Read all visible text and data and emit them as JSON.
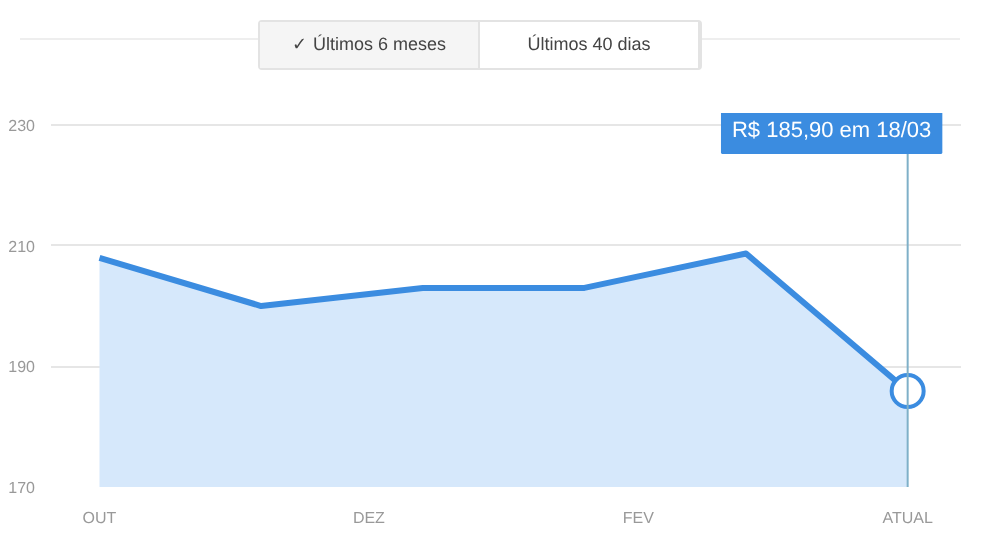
{
  "chart_data": {
    "type": "area",
    "categories": [
      "OUT",
      null,
      null,
      null,
      null,
      "DEZ",
      null,
      null,
      null,
      null,
      "FEV",
      null,
      null,
      null,
      null,
      "ATUAL"
    ],
    "series": [
      {
        "color": "#3b8ce0",
        "values": [
          208,
          null,
          null,
          200,
          null,
          null,
          203,
          null,
          null,
          203,
          null,
          null,
          208.7,
          null,
          null,
          185.9
        ]
      }
    ],
    "ylim": [
      170,
      232
    ],
    "yticks": [
      170,
      190,
      210,
      230
    ],
    "grid": "y",
    "marker": "none",
    "line_style": "solid",
    "ref_lines": [
      {
        "axis": "x",
        "value": "ATUAL",
        "label": null,
        "color": "#7fb0c8"
      }
    ],
    "annotations": [
      "✓ Últimos 6 meses",
      "Últimos 40 dias",
      "R$ 185,90 em 18/03"
    ]
  }
}
